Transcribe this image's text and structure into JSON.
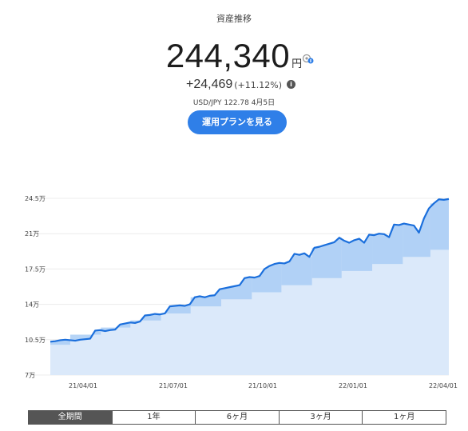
{
  "header": {
    "title": "資産推移",
    "total_value": "244,340",
    "currency_unit": "円",
    "change_amount": "+24,469",
    "change_percent": "(+11.12%)",
    "fx_rate": "USD/JPY 122.78 4月5日",
    "plan_button_label": "運用プランを見る"
  },
  "tabs": [
    {
      "label": "全期間",
      "active": true
    },
    {
      "label": "1年",
      "active": false
    },
    {
      "label": "6ヶ月",
      "active": false
    },
    {
      "label": "3ヶ月",
      "active": false
    },
    {
      "label": "1ヶ月",
      "active": false
    }
  ],
  "colors": {
    "accent": "#2f7fe8",
    "line": "#1b6fdc",
    "area": "#dbe9fa",
    "band": "#a9cdf5"
  },
  "chart_data": {
    "type": "area",
    "y_ticks": [
      "24.5万",
      "21万",
      "17.5万",
      "14万",
      "10.5万",
      "7万"
    ],
    "y_tick_values": [
      245000,
      210000,
      175000,
      140000,
      105000,
      70000
    ],
    "x_ticks": [
      "21/04/01",
      "21/07/01",
      "21/10/01",
      "22/01/01",
      "22/04/01"
    ],
    "ylim": [
      70000,
      245000
    ],
    "grid": true,
    "series": [
      {
        "values": [
          103000,
          103500,
          104500,
          105000,
          104500,
          104000,
          105000,
          105500,
          106000,
          114000,
          114500,
          113500,
          114500,
          115000,
          120000,
          121000,
          122000,
          121500,
          123000,
          129000,
          129500,
          130500,
          130000,
          131000,
          138000,
          138500,
          139000,
          138500,
          140000,
          147000,
          148000,
          147000,
          148500,
          149000,
          155000,
          156000,
          157000,
          158000,
          159000,
          166000,
          167000,
          166500,
          168000,
          175000,
          178000,
          180000,
          181000,
          180500,
          182500,
          190000,
          189000,
          190500,
          187000,
          196000,
          197000,
          198500,
          200000,
          201500,
          206000,
          203000,
          201000,
          203500,
          205000,
          201000,
          209000,
          208500,
          210000,
          209500,
          206500,
          219000,
          218500,
          220000,
          219000,
          218000,
          211000,
          225000,
          235000,
          240000,
          244000,
          243500,
          244300
        ]
      }
    ],
    "deposit_steps": [
      {
        "from": "21/02/19",
        "value": 100000
      },
      {
        "from": "21/03/19",
        "value": 110000
      },
      {
        "from": "21/04/19",
        "value": 117000
      },
      {
        "from": "21/05/19",
        "value": 124000
      },
      {
        "from": "21/06/19",
        "value": 131000
      },
      {
        "from": "21/07/19",
        "value": 138000
      },
      {
        "from": "21/08/19",
        "value": 145000
      },
      {
        "from": "21/09/19",
        "value": 152000
      },
      {
        "from": "21/10/19",
        "value": 159000
      },
      {
        "from": "21/11/19",
        "value": 166000
      },
      {
        "from": "21/12/19",
        "value": 173000
      },
      {
        "from": "22/01/19",
        "value": 180000
      },
      {
        "from": "22/02/19",
        "value": 187000
      },
      {
        "from": "22/03/19",
        "value": 194000
      }
    ]
  }
}
